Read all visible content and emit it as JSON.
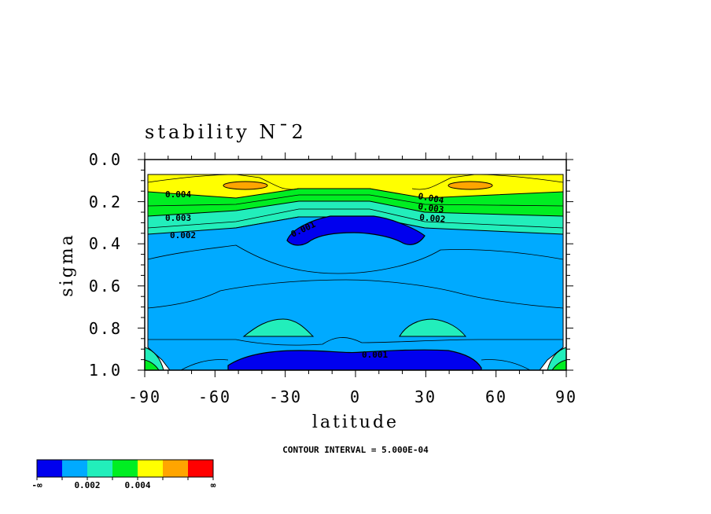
{
  "chart_data": {
    "type": "contour",
    "title": "stability N¯2",
    "xlabel": "latitude",
    "ylabel": "sigma",
    "xlim": [
      -90,
      90
    ],
    "ylim": [
      1.0,
      0.0
    ],
    "y_axis": "inverted",
    "x_ticks": [
      "-90",
      "-60",
      "-30",
      "0",
      "30",
      "60",
      "90"
    ],
    "y_ticks": [
      "0.0",
      "0.2",
      "0.4",
      "0.6",
      "0.8",
      "1.0"
    ],
    "contour_interval_text": "CONTOUR INTERVAL = 5.000E-04",
    "contour_labels": [
      "0.004",
      "0.003",
      "0.002",
      "0.004",
      "0.003",
      "0.002",
      "0.001",
      "0.001"
    ],
    "colorbar": {
      "colors": [
        "#0000ee",
        "#00aaff",
        "#22eebb",
        "#00ee22",
        "#ffff00",
        "#ffa500",
        "#ff0000"
      ],
      "labels": [
        "-∞",
        "0.002",
        "0.004",
        "∞"
      ]
    }
  }
}
